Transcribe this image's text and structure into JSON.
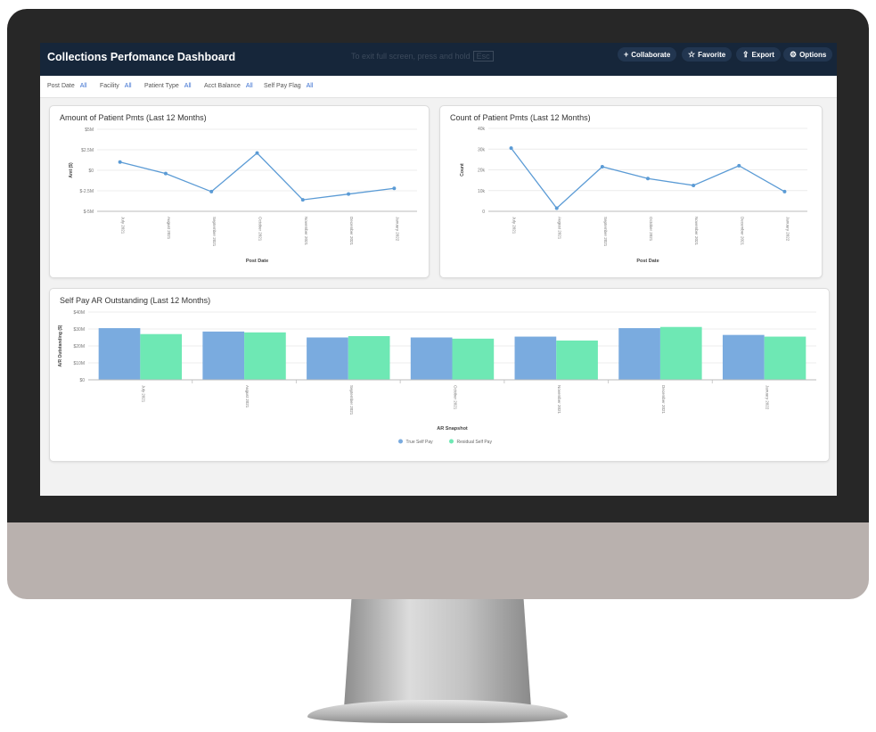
{
  "header": {
    "title": "Collections Perfomance Dashboard",
    "esc_hint": "To exit full screen, press and hold",
    "esc_key": "Esc",
    "buttons": {
      "collaborate": "Collaborate",
      "favorite": "Favorite",
      "export": "Export",
      "options": "Options"
    }
  },
  "filters": [
    {
      "label": "Post Date",
      "value": "All"
    },
    {
      "label": "Facility",
      "value": "All"
    },
    {
      "label": "Patient Type",
      "value": "All"
    },
    {
      "label": "Acct Balance",
      "value": "All"
    },
    {
      "label": "Self Pay Flag",
      "value": "All"
    }
  ],
  "chart_data": [
    {
      "type": "line",
      "title": "Amount of Patient Pmts (Last 12 Months)",
      "xlabel": "Post Date",
      "ylabel": "Amt ($)",
      "categories": [
        "July 2021",
        "August 2021",
        "September 2021",
        "October 2021",
        "November 2021",
        "December 2021",
        "January 2022"
      ],
      "values": [
        1.0,
        -0.4,
        -2.6,
        2.1,
        -3.6,
        -2.9,
        -2.2
      ],
      "yticks": [
        "$5M",
        "$2.5M",
        "$0",
        "$-2.5M",
        "$-5M"
      ],
      "ylim": [
        -5,
        5
      ],
      "color": "#5b9bd5"
    },
    {
      "type": "line",
      "title": "Count of Patient Pmts (Last 12 Months)",
      "xlabel": "Post Date",
      "ylabel": "Count",
      "categories": [
        "July 2021",
        "August 2021",
        "September 2021",
        "October 2021",
        "November 2021",
        "December 2021",
        "January 2022"
      ],
      "values": [
        30500,
        1500,
        21500,
        15800,
        12500,
        22000,
        9500
      ],
      "yticks": [
        "40k",
        "30k",
        "20k",
        "10k",
        "0"
      ],
      "ylim": [
        0,
        40000
      ],
      "color": "#5b9bd5"
    },
    {
      "type": "bar",
      "title": "Self Pay AR Outstanding (Last 12 Months)",
      "xlabel": "AR Snapshot",
      "ylabel": "A/R Outstanding ($)",
      "categories": [
        "July 2021",
        "August 2021",
        "September 2021",
        "October 2021",
        "November 2021",
        "December 2021",
        "January 2022"
      ],
      "yticks": [
        "$40M",
        "$30M",
        "$20M",
        "$10M",
        "$0"
      ],
      "ylim": [
        0,
        40
      ],
      "series": [
        {
          "name": "True Self Pay",
          "values": [
            30.5,
            28.5,
            25,
            25,
            25.5,
            30.5,
            26.5
          ],
          "color": "#7aabdf"
        },
        {
          "name": "Residual Self Pay",
          "values": [
            27,
            28,
            25.8,
            24.3,
            23.2,
            31.2,
            25.5
          ],
          "color": "#6ee8b4"
        }
      ],
      "legend": "bottom"
    }
  ]
}
